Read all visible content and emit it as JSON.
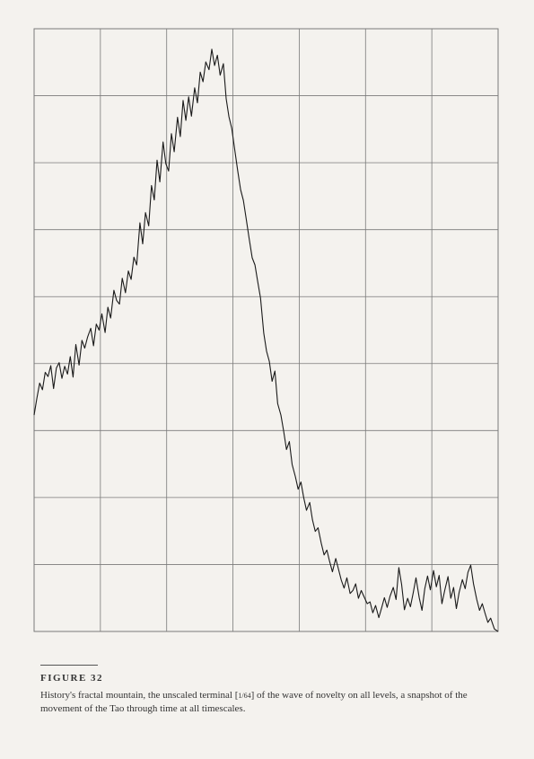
{
  "figure": {
    "label": "FIGURE 32",
    "caption_before": "History's fractal mountain, the unscaled terminal [",
    "caption_fraction": "1/64",
    "caption_after": "] of the wave of novelty on all levels, a snapshot of the movement of the Tao through time at all timescales."
  },
  "chart_data": {
    "type": "line",
    "title": "",
    "xlabel": "",
    "ylabel": "",
    "grid": true,
    "grid_columns": 7,
    "grid_rows": 9,
    "xlim": [
      0,
      100
    ],
    "ylim": [
      0,
      100
    ],
    "series": [
      {
        "values": [
          [
            0,
            35.9
          ],
          [
            0.6,
            38.7
          ],
          [
            1.2,
            41.2
          ],
          [
            1.8,
            40.1
          ],
          [
            2.4,
            43.0
          ],
          [
            3.0,
            42.3
          ],
          [
            3.6,
            44.1
          ],
          [
            4.2,
            40.3
          ],
          [
            4.8,
            43.7
          ],
          [
            5.4,
            44.6
          ],
          [
            6.0,
            42.0
          ],
          [
            6.6,
            44.0
          ],
          [
            7.2,
            42.7
          ],
          [
            7.8,
            45.6
          ],
          [
            8.4,
            42.2
          ],
          [
            9.0,
            47.6
          ],
          [
            9.7,
            44.2
          ],
          [
            10.3,
            48.3
          ],
          [
            10.9,
            47.0
          ],
          [
            11.5,
            48.8
          ],
          [
            12.2,
            50.3
          ],
          [
            12.8,
            47.4
          ],
          [
            13.4,
            51.0
          ],
          [
            14.0,
            50.0
          ],
          [
            14.6,
            52.7
          ],
          [
            15.3,
            49.6
          ],
          [
            15.9,
            53.8
          ],
          [
            16.5,
            52.0
          ],
          [
            17.2,
            56.6
          ],
          [
            17.8,
            54.9
          ],
          [
            18.4,
            54.3
          ],
          [
            19.0,
            58.6
          ],
          [
            19.7,
            56.2
          ],
          [
            20.3,
            59.8
          ],
          [
            20.9,
            58.4
          ],
          [
            21.5,
            62.1
          ],
          [
            22.1,
            60.8
          ],
          [
            22.8,
            67.8
          ],
          [
            23.4,
            64.3
          ],
          [
            24.0,
            69.5
          ],
          [
            24.7,
            67.3
          ],
          [
            25.3,
            74.0
          ],
          [
            25.9,
            71.6
          ],
          [
            26.5,
            78.2
          ],
          [
            27.1,
            74.6
          ],
          [
            27.8,
            81.2
          ],
          [
            28.4,
            77.6
          ],
          [
            29.0,
            76.4
          ],
          [
            29.6,
            82.6
          ],
          [
            30.2,
            79.6
          ],
          [
            30.9,
            85.3
          ],
          [
            31.5,
            82.1
          ],
          [
            32.1,
            88.1
          ],
          [
            32.7,
            84.8
          ],
          [
            33.3,
            88.7
          ],
          [
            33.9,
            85.5
          ],
          [
            34.6,
            90.2
          ],
          [
            35.2,
            87.7
          ],
          [
            35.8,
            92.8
          ],
          [
            36.4,
            91.2
          ],
          [
            37.0,
            94.5
          ],
          [
            37.7,
            93.2
          ],
          [
            38.3,
            96.6
          ],
          [
            38.9,
            93.9
          ],
          [
            39.5,
            95.6
          ],
          [
            40.1,
            92.3
          ],
          [
            40.8,
            94.2
          ],
          [
            41.4,
            88.4
          ],
          [
            42.0,
            85.4
          ],
          [
            42.6,
            83.5
          ],
          [
            43.2,
            80.2
          ],
          [
            43.9,
            76.3
          ],
          [
            44.5,
            73.3
          ],
          [
            45.1,
            71.5
          ],
          [
            45.7,
            68.5
          ],
          [
            46.3,
            65.4
          ],
          [
            47.0,
            62.0
          ],
          [
            47.6,
            60.8
          ],
          [
            48.2,
            58.0
          ],
          [
            48.8,
            55.3
          ],
          [
            49.5,
            49.5
          ],
          [
            50.1,
            46.5
          ],
          [
            50.7,
            44.8
          ],
          [
            51.3,
            41.5
          ],
          [
            51.9,
            43.2
          ],
          [
            52.5,
            37.8
          ],
          [
            53.2,
            35.9
          ],
          [
            53.8,
            33.2
          ],
          [
            54.4,
            30.2
          ],
          [
            55.0,
            31.5
          ],
          [
            55.6,
            27.7
          ],
          [
            56.3,
            25.7
          ],
          [
            56.9,
            23.6
          ],
          [
            57.5,
            24.8
          ],
          [
            58.1,
            22.2
          ],
          [
            58.7,
            20.1
          ],
          [
            59.4,
            21.4
          ],
          [
            60.0,
            18.5
          ],
          [
            60.6,
            16.6
          ],
          [
            61.2,
            17.2
          ],
          [
            61.9,
            14.6
          ],
          [
            62.5,
            12.7
          ],
          [
            63.1,
            13.5
          ],
          [
            63.7,
            11.6
          ],
          [
            64.3,
            9.9
          ],
          [
            65.0,
            12.1
          ],
          [
            65.6,
            10.3
          ],
          [
            66.2,
            8.5
          ],
          [
            66.8,
            7.2
          ],
          [
            67.4,
            8.9
          ],
          [
            68.1,
            6.3
          ],
          [
            68.7,
            6.8
          ],
          [
            69.3,
            7.9
          ],
          [
            69.9,
            5.5
          ],
          [
            70.5,
            6.8
          ],
          [
            71.2,
            5.6
          ],
          [
            71.8,
            4.6
          ],
          [
            72.4,
            4.9
          ],
          [
            73.0,
            3.1
          ],
          [
            73.6,
            4.3
          ],
          [
            74.3,
            2.3
          ],
          [
            74.9,
            3.9
          ],
          [
            75.5,
            5.6
          ],
          [
            76.1,
            4.0
          ],
          [
            76.7,
            5.8
          ],
          [
            77.4,
            7.3
          ],
          [
            78.0,
            5.3
          ],
          [
            78.6,
            10.6
          ],
          [
            79.2,
            7.8
          ],
          [
            79.8,
            3.6
          ],
          [
            80.5,
            5.5
          ],
          [
            81.1,
            4.1
          ],
          [
            81.7,
            6.4
          ],
          [
            82.3,
            8.9
          ],
          [
            83.0,
            5.6
          ],
          [
            83.6,
            3.5
          ],
          [
            84.2,
            7.1
          ],
          [
            84.8,
            9.2
          ],
          [
            85.4,
            6.9
          ],
          [
            86.1,
            10.1
          ],
          [
            86.7,
            7.4
          ],
          [
            87.3,
            9.3
          ],
          [
            87.9,
            4.6
          ],
          [
            88.5,
            6.8
          ],
          [
            89.2,
            9.1
          ],
          [
            89.8,
            5.5
          ],
          [
            90.4,
            7.3
          ],
          [
            91.0,
            3.8
          ],
          [
            91.6,
            6.5
          ],
          [
            92.3,
            8.6
          ],
          [
            92.9,
            7.1
          ],
          [
            93.5,
            9.8
          ],
          [
            94.1,
            11.0
          ],
          [
            94.7,
            7.9
          ],
          [
            95.4,
            5.3
          ],
          [
            96.0,
            3.5
          ],
          [
            96.6,
            4.6
          ],
          [
            97.2,
            3.0
          ],
          [
            97.8,
            1.5
          ],
          [
            98.4,
            2.2
          ],
          [
            99.2,
            0.4
          ],
          [
            100.0,
            0.0
          ]
        ]
      }
    ]
  },
  "colors": {
    "background": "#f4f2ee",
    "grid": "#7a7a7a",
    "line": "#1a1a1a",
    "text": "#333333"
  }
}
